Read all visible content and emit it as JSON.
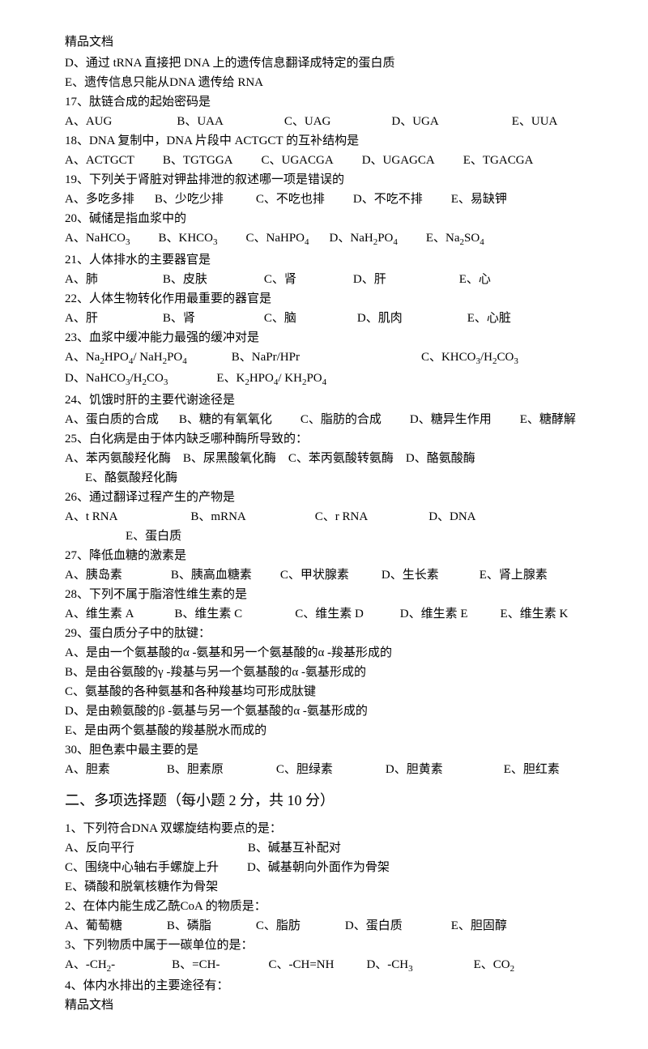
{
  "header": "精品文档",
  "footer": "精品文档",
  "section2": "二、多项选择题（每小题 2 分，共 10 分）",
  "items": [
    {
      "type": "opt",
      "text": "D、通过 tRNA 直接把 DNA 上的遗传信息翻译成特定的蛋白质"
    },
    {
      "type": "opt",
      "text": "E、遗传信息只能从DNA 遗传给 RNA"
    },
    {
      "type": "q",
      "text": "17、肽链合成的起始密码是"
    },
    {
      "type": "opts",
      "opts": [
        [
          "A、AUG",
          0
        ],
        [
          "B、UAA",
          80
        ],
        [
          "C、UAG",
          75
        ],
        [
          "D、UGA",
          75
        ],
        [
          "E、UUA",
          90
        ]
      ]
    },
    {
      "type": "q",
      "text": "18、DNA 复制中，DNA 片段中 ACTGCT 的互补结构是"
    },
    {
      "type": "opts",
      "opts": [
        [
          "A、ACTGCT",
          0
        ],
        [
          "B、TGTGGA",
          35
        ],
        [
          "C、UGACGA",
          35
        ],
        [
          "D、UGAGCA",
          35
        ],
        [
          "E、TGACGA",
          35
        ]
      ]
    },
    {
      "type": "q",
      "text": "19、下列关于肾脏对钾盐排泄的叙述哪一项是错误的"
    },
    {
      "type": "opts",
      "opts": [
        [
          "A、多吃多排",
          0
        ],
        [
          "B、少吃少排",
          25
        ],
        [
          "C、不吃也排",
          40
        ],
        [
          "D、不吃不排",
          35
        ],
        [
          "E、易缺钾",
          35
        ]
      ]
    },
    {
      "type": "q",
      "text": "20、碱储是指血浆中的"
    },
    {
      "type": "opts",
      "opts": [
        [
          "A、NaHCO₃",
          0
        ],
        [
          "B、KHCO₃",
          35
        ],
        [
          "C、NaHPO₄",
          35
        ],
        [
          "D、NaH₂PO₄",
          25
        ],
        [
          "E、Na₂SO₄",
          35
        ]
      ]
    },
    {
      "type": "q",
      "text": "21、人体排水的主要器官是"
    },
    {
      "type": "opts",
      "opts": [
        [
          "A、肺",
          0
        ],
        [
          "B、皮肤",
          80
        ],
        [
          "C、肾",
          70
        ],
        [
          "D、肝",
          70
        ],
        [
          "E、心",
          90
        ]
      ]
    },
    {
      "type": "q",
      "text": "22、人体生物转化作用最重要的器官是"
    },
    {
      "type": "opts",
      "opts": [
        [
          "A、肝",
          0
        ],
        [
          "B、肾",
          80
        ],
        [
          "C、脑",
          85
        ],
        [
          "D、肌肉",
          75
        ],
        [
          "E、心脏",
          80
        ]
      ]
    },
    {
      "type": "q",
      "text": "23、血浆中缓冲能力最强的缓冲对是"
    },
    {
      "type": "opts",
      "opts": [
        [
          "A、Na₂HPO₄/ NaH₂PO₄",
          0
        ],
        [
          "B、NaPr/HPr",
          55
        ],
        [
          "C、KHCO₃/H₂CO₃",
          150
        ]
      ]
    },
    {
      "type": "opts",
      "opts": [
        [
          "D、NaHCO₃/H₂CO₃",
          0
        ],
        [
          "E、K₂HPO₄/ KH₂PO₄",
          60
        ]
      ]
    },
    {
      "type": "q",
      "text": "24、饥饿时肝的主要代谢途径是"
    },
    {
      "type": "opts",
      "opts": [
        [
          "A、蛋白质的合成",
          0
        ],
        [
          "B、糖的有氧氧化",
          25
        ],
        [
          "C、脂肪的合成",
          35
        ],
        [
          "D、糖异生作用",
          35
        ],
        [
          "E、糖酵解",
          35
        ]
      ]
    },
    {
      "type": "q",
      "text": "25、白化病是由于体内缺乏哪种酶所导致的："
    },
    {
      "type": "opts",
      "opts": [
        [
          "A、苯丙氨酸羟化酶",
          0
        ],
        [
          "B、尿黑酸氧化酶",
          15
        ],
        [
          "C、苯丙氨酸转氨酶",
          15
        ],
        [
          "D、酪氨酸酶",
          15
        ],
        [
          "E、酪氨酸羟化酶",
          25
        ]
      ]
    },
    {
      "type": "q",
      "text": "26、通过翻译过程产生的产物是"
    },
    {
      "type": "opts",
      "opts": [
        [
          "A、t RNA",
          0
        ],
        [
          "B、mRNA",
          90
        ],
        [
          "C、r RNA",
          85
        ],
        [
          "D、DNA",
          75
        ],
        [
          "E、蛋白质",
          75
        ]
      ]
    },
    {
      "type": "q",
      "text": "27、降低血糖的激素是"
    },
    {
      "type": "opts",
      "opts": [
        [
          "A、胰岛素",
          0
        ],
        [
          "B、胰高血糖素",
          60
        ],
        [
          "C、甲状腺素",
          35
        ],
        [
          "D、生长素",
          40
        ],
        [
          "E、肾上腺素",
          50
        ]
      ]
    },
    {
      "type": "q",
      "text": "28、下列不属于脂溶性维生素的是"
    },
    {
      "type": "opts",
      "opts": [
        [
          "A、维生素 A",
          0
        ],
        [
          "B、维生素 C",
          50
        ],
        [
          "C、维生素 D",
          65
        ],
        [
          "D、维生素 E",
          45
        ],
        [
          "E、维生素 K",
          40
        ]
      ]
    },
    {
      "type": "q",
      "text": "29、蛋白质分子中的肽键："
    },
    {
      "type": "opt",
      "text": "A、是由一个氨基酸的α -氨基和另一个氨基酸的α -羧基形成的"
    },
    {
      "type": "opt",
      "text": "B、是由谷氨酸的γ -羧基与另一个氨基酸的α -氨基形成的"
    },
    {
      "type": "opt",
      "text": "C、氨基酸的各种氨基和各种羧基均可形成肽键"
    },
    {
      "type": "opt",
      "text": "D、是由赖氨酸的β -氨基与另一个氨基酸的α -氨基形成的"
    },
    {
      "type": "opt",
      "text": "E、是由两个氨基酸的羧基脱水而成的"
    },
    {
      "type": "q",
      "text": "30、胆色素中最主要的是"
    },
    {
      "type": "opts",
      "opts": [
        [
          "A、胆素",
          0
        ],
        [
          "B、胆素原",
          70
        ],
        [
          "C、胆绿素",
          65
        ],
        [
          "D、胆黄素",
          65
        ],
        [
          "E、胆红素",
          75
        ]
      ]
    },
    {
      "type": "sec"
    },
    {
      "type": "q",
      "text": "1、下列符合DNA 双螺旋结构要点的是："
    },
    {
      "type": "opts",
      "opts": [
        [
          "A、反向平行",
          0
        ],
        [
          "B、碱基互补配对",
          140
        ]
      ]
    },
    {
      "type": "opts",
      "opts": [
        [
          "C、围绕中心轴右手螺旋上升",
          0
        ],
        [
          "D、碱基朝向外面作为骨架",
          35
        ]
      ]
    },
    {
      "type": "opt",
      "text": "E、磷酸和脱氧核糖作为骨架"
    },
    {
      "type": "q",
      "text": "2、在体内能生成乙酰CoA 的物质是："
    },
    {
      "type": "opts",
      "opts": [
        [
          "A、葡萄糖",
          0
        ],
        [
          "B、磷脂",
          55
        ],
        [
          "C、脂肪",
          55
        ],
        [
          "D、蛋白质",
          55
        ],
        [
          "E、胆固醇",
          60
        ]
      ]
    },
    {
      "type": "q",
      "text": "3、下列物质中属于一碳单位的是："
    },
    {
      "type": "opts",
      "opts": [
        [
          "A、-CH₂-",
          0
        ],
        [
          "B、=CH-",
          70
        ],
        [
          "C、-CH=NH",
          60
        ],
        [
          "D、-CH₃",
          40
        ],
        [
          "E、CO₂",
          75
        ]
      ]
    },
    {
      "type": "q",
      "text": "4、体内水排出的主要途径有："
    }
  ]
}
